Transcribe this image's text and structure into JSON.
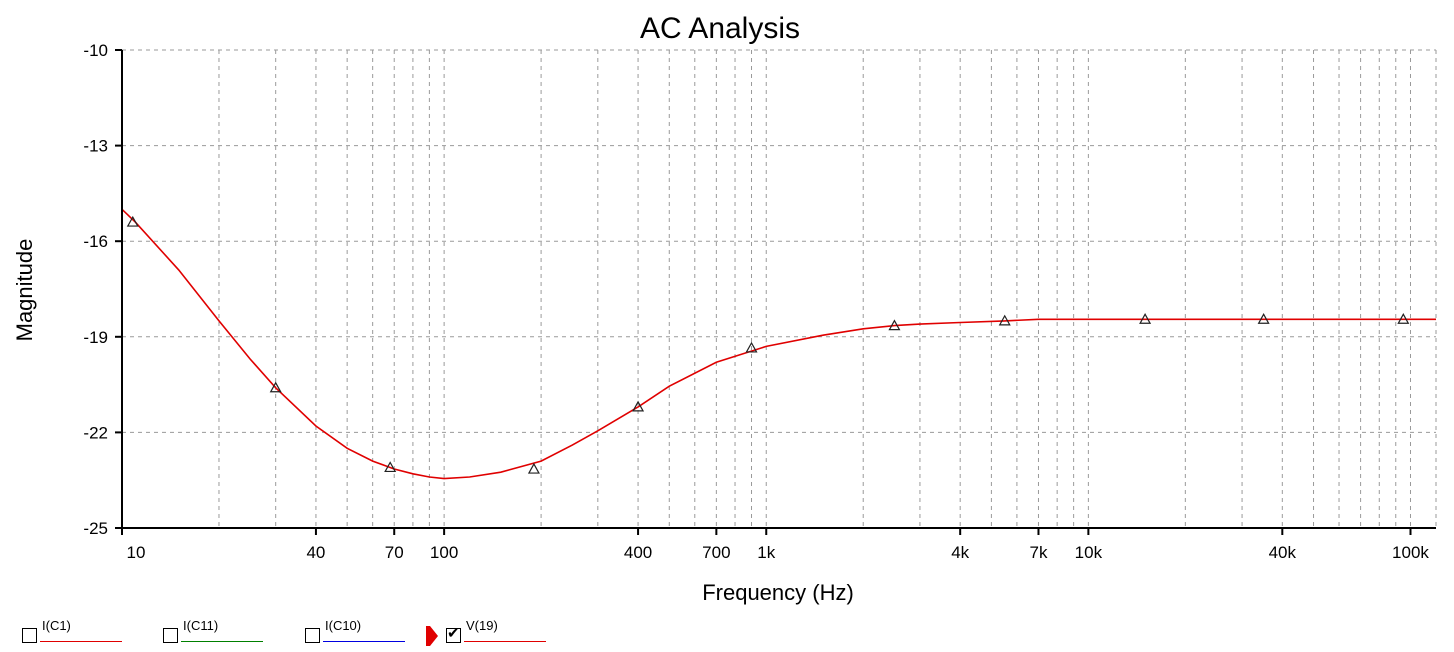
{
  "chart_data": {
    "type": "line",
    "title": "AC Analysis",
    "xlabel": "Frequency (Hz)",
    "ylabel": "Magnitude",
    "xscale": "log",
    "xlim": [
      10,
      120000
    ],
    "ylim": [
      -25,
      -10
    ],
    "xticks": [
      10,
      40,
      70,
      100,
      400,
      700,
      1000,
      4000,
      7000,
      10000,
      40000,
      100000
    ],
    "xtick_labels": [
      "10",
      "40",
      "70",
      "100",
      "400",
      "700",
      "1k",
      "4k",
      "7k",
      "10k",
      "40k",
      "100k"
    ],
    "xgrid": [
      10,
      20,
      30,
      40,
      50,
      60,
      70,
      80,
      90,
      100,
      200,
      300,
      400,
      500,
      600,
      700,
      800,
      900,
      1000,
      2000,
      3000,
      4000,
      5000,
      6000,
      7000,
      8000,
      9000,
      10000,
      20000,
      30000,
      40000,
      50000,
      60000,
      70000,
      80000,
      90000,
      100000
    ],
    "yticks": [
      -10,
      -13,
      -16,
      -19,
      -22,
      -25
    ],
    "grid": true,
    "series": [
      {
        "name": "V(19)",
        "color": "#e00000",
        "x": [
          10,
          11,
          15,
          20,
          25,
          30,
          40,
          50,
          60,
          70,
          80,
          90,
          100,
          120,
          150,
          200,
          250,
          300,
          400,
          500,
          700,
          1000,
          1500,
          2000,
          2500,
          3000,
          4000,
          5500,
          7000,
          10000,
          14000,
          20000,
          35000,
          60000,
          110000,
          120000
        ],
        "y": [
          -15.0,
          -15.4,
          -16.9,
          -18.5,
          -19.7,
          -20.6,
          -21.8,
          -22.5,
          -22.9,
          -23.15,
          -23.3,
          -23.4,
          -23.45,
          -23.4,
          -23.25,
          -22.9,
          -22.4,
          -21.95,
          -21.2,
          -20.55,
          -19.8,
          -19.3,
          -18.95,
          -18.75,
          -18.65,
          -18.6,
          -18.55,
          -18.5,
          -18.45,
          -18.45,
          -18.45,
          -18.45,
          -18.45,
          -18.45,
          -18.45,
          -18.45
        ],
        "markers_x": [
          10.8,
          30,
          68,
          190,
          400,
          900,
          2500,
          5500,
          15000,
          35000,
          95000
        ],
        "markers_y": [
          -15.4,
          -20.6,
          -23.1,
          -23.15,
          -21.2,
          -19.35,
          -18.65,
          -18.5,
          -18.45,
          -18.45,
          -18.45
        ]
      }
    ]
  },
  "legend": [
    {
      "label": "I(C1)",
      "color": "#e00000",
      "checked": false
    },
    {
      "label": "I(C11)",
      "color": "#008000",
      "checked": false
    },
    {
      "label": "I(C10)",
      "color": "#0000e0",
      "checked": false
    },
    {
      "label": "V(19)",
      "color": "#e00000",
      "checked": true
    }
  ]
}
